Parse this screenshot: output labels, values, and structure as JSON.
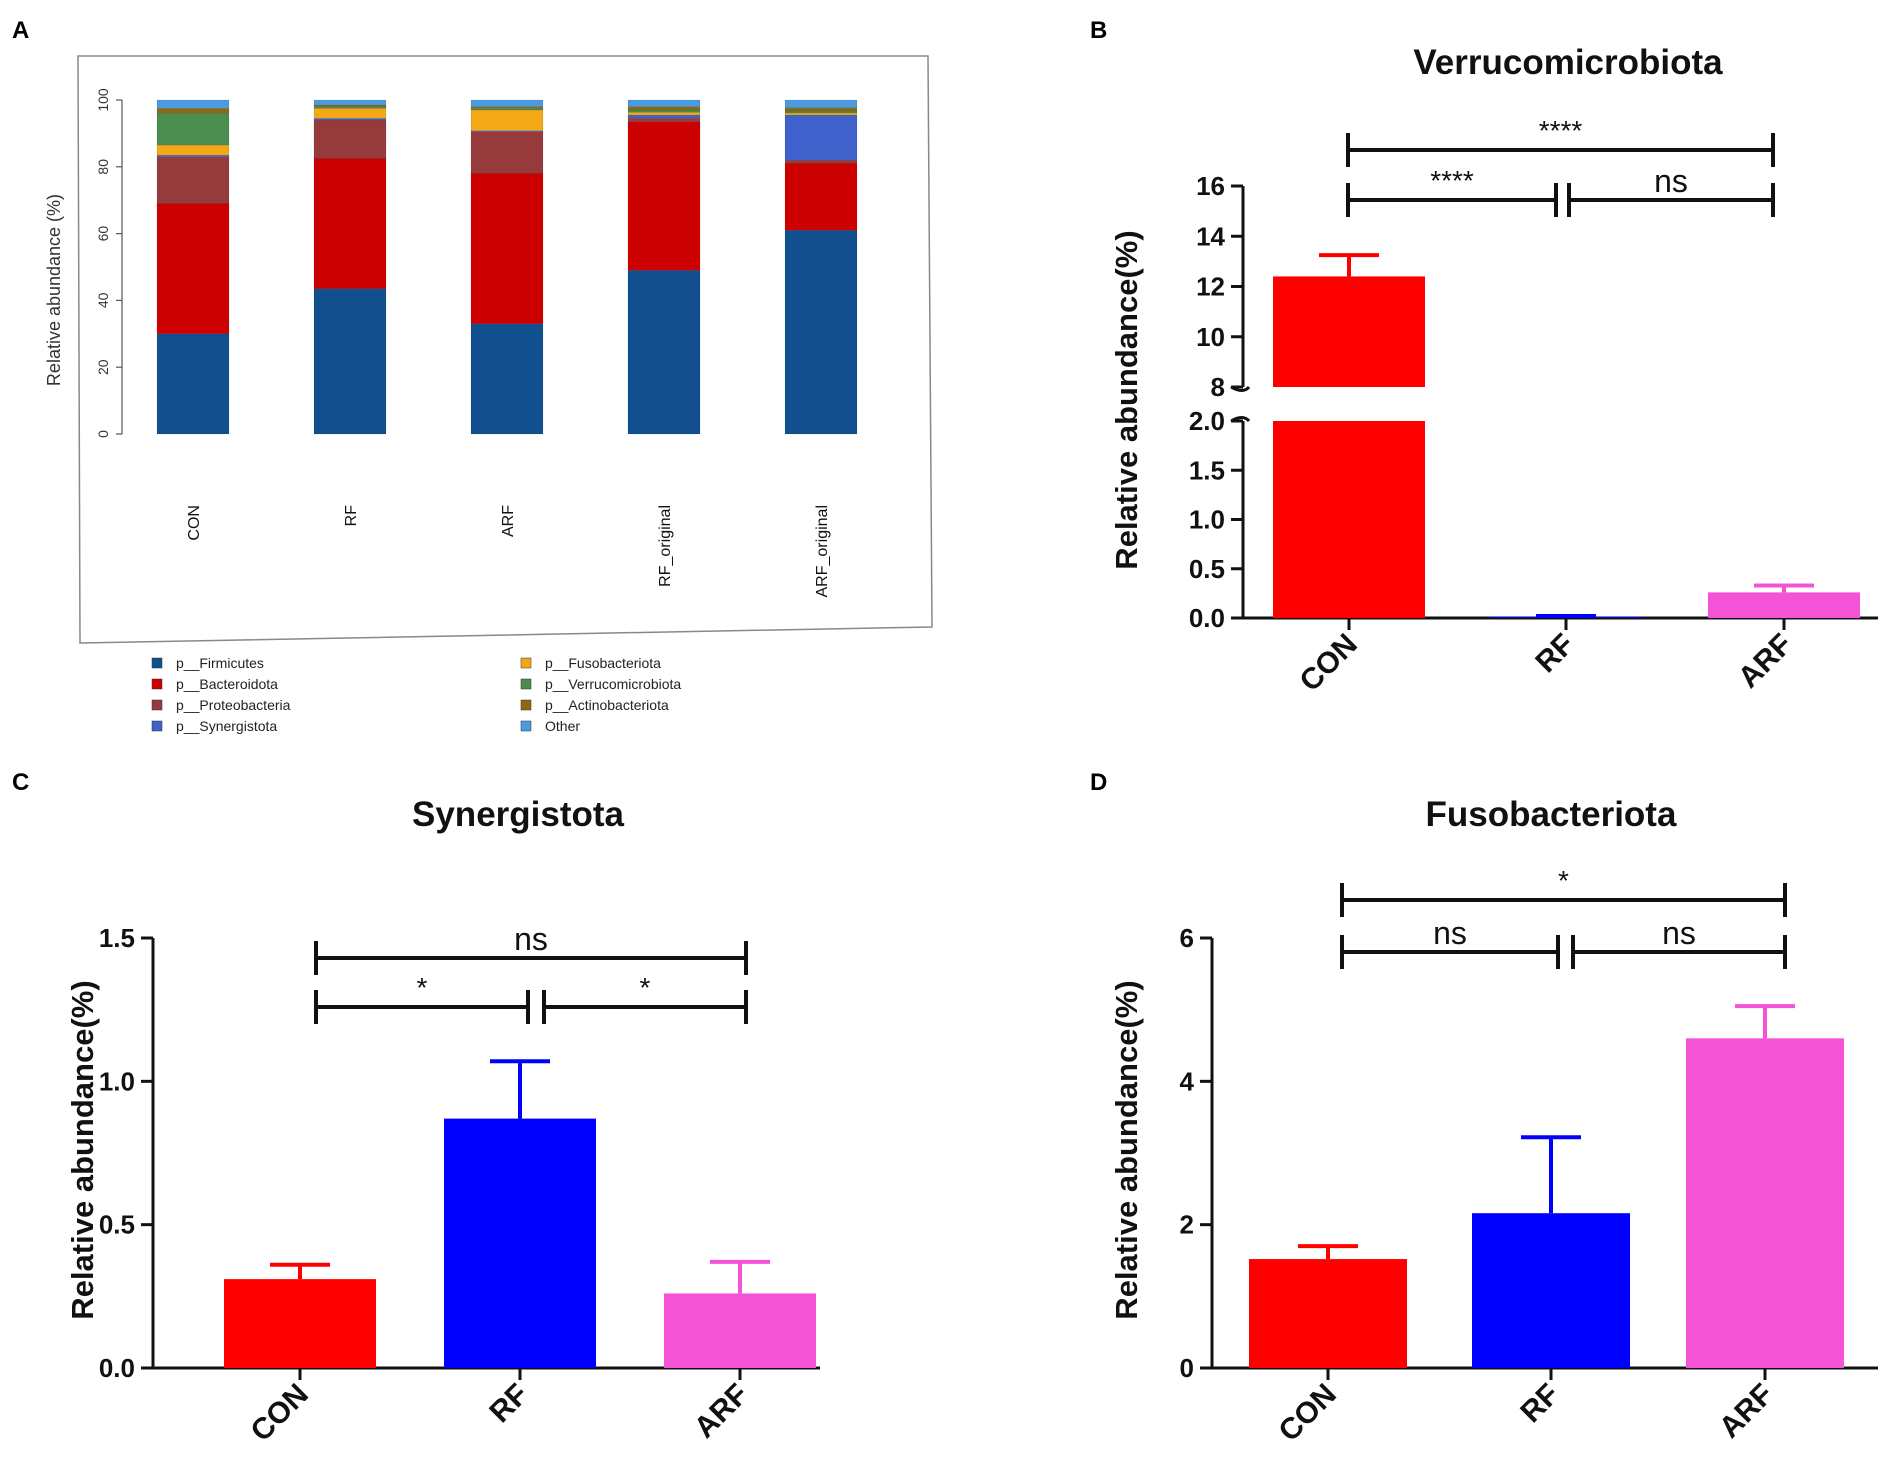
{
  "panels": {
    "a": "A",
    "b": "B",
    "c": "C",
    "d": "D"
  },
  "chart_data": [
    {
      "id": "A",
      "type": "bar",
      "stacked": true,
      "title": "",
      "xlabel": "",
      "ylabel": "Relative abundance (%)",
      "ylim": [
        0,
        100
      ],
      "yticks": [
        0,
        20,
        40,
        60,
        80,
        100
      ],
      "categories": [
        "CON",
        "RF",
        "ARF",
        "RF_original",
        "ARF_original"
      ],
      "series": [
        {
          "name": "p__Firmicutes",
          "color": "#114f8e",
          "values": [
            30,
            43.5,
            33,
            49,
            61
          ]
        },
        {
          "name": "p__Bacteroidota",
          "color": "#cc0000",
          "values": [
            39,
            39,
            45,
            44.5,
            20
          ]
        },
        {
          "name": "p__Proteobacteria",
          "color": "#973a3b",
          "values": [
            14,
            11.5,
            12.5,
            1,
            1
          ]
        },
        {
          "name": "p__Synergistota",
          "color": "#3f62cc",
          "values": [
            0.5,
            0.5,
            0.3,
            1,
            13.5
          ]
        },
        {
          "name": "p__Fusobacteriota",
          "color": "#f5a816",
          "values": [
            3,
            3,
            6.2,
            0.8,
            0.6
          ]
        },
        {
          "name": "p__Verrucomicrobiota",
          "color": "#4b8c50",
          "values": [
            9.5,
            0.5,
            0.5,
            0.7,
            0.6
          ]
        },
        {
          "name": "p__Actinobacteriota",
          "color": "#8c6914",
          "values": [
            1.5,
            0.5,
            0.5,
            1,
            1
          ]
        },
        {
          "name": "Other",
          "color": "#4b9be1",
          "values": [
            2.5,
            1.5,
            2,
            2,
            2.3
          ]
        }
      ]
    },
    {
      "id": "B",
      "type": "bar",
      "title": "Verrucomicrobiota",
      "xlabel": "",
      "ylabel": "Relative abundance(%)",
      "axis_break": {
        "lower": [
          0,
          2.0
        ],
        "upper": [
          8,
          16
        ]
      },
      "yticks_lower": [
        "0.0",
        "0.5",
        "1.0",
        "1.5",
        "2.0"
      ],
      "yticks_upper": [
        "8",
        "10",
        "12",
        "14",
        "16"
      ],
      "categories": [
        "CON",
        "RF",
        "ARF"
      ],
      "colors": [
        "#ff0000",
        "#0000ff",
        "#f553d5"
      ],
      "values": [
        12.4,
        0.01,
        0.26
      ],
      "errors": [
        0.85,
        0.01,
        0.07
      ],
      "significance": [
        {
          "label": "****",
          "from": 0,
          "to": 2
        },
        {
          "label": "****",
          "from": 0,
          "to": 1
        },
        {
          "label": "ns",
          "from": 1,
          "to": 2
        }
      ]
    },
    {
      "id": "C",
      "type": "bar",
      "title": "Synergistota",
      "xlabel": "",
      "ylabel": "Relative abundance(%)",
      "ylim": [
        0,
        1.5
      ],
      "yticks": [
        "0.0",
        "0.5",
        "1.0",
        "1.5"
      ],
      "categories": [
        "CON",
        "RF",
        "ARF"
      ],
      "colors": [
        "#ff0000",
        "#0000ff",
        "#f553d5"
      ],
      "values": [
        0.31,
        0.87,
        0.26
      ],
      "errors": [
        0.05,
        0.2,
        0.11
      ],
      "significance": [
        {
          "label": "ns",
          "from": 0,
          "to": 2
        },
        {
          "label": "*",
          "from": 0,
          "to": 1
        },
        {
          "label": "*",
          "from": 1,
          "to": 2
        }
      ]
    },
    {
      "id": "D",
      "type": "bar",
      "title": "Fusobacteriota",
      "xlabel": "",
      "ylabel": "Relative abundance(%)",
      "ylim": [
        0,
        6
      ],
      "yticks": [
        "0",
        "2",
        "4",
        "6"
      ],
      "categories": [
        "CON",
        "RF",
        "ARF"
      ],
      "colors": [
        "#ff0000",
        "#0000ff",
        "#f553d5"
      ],
      "values": [
        1.52,
        2.16,
        4.6
      ],
      "errors": [
        0.18,
        1.06,
        0.45
      ],
      "significance": [
        {
          "label": "*",
          "from": 0,
          "to": 2
        },
        {
          "label": "ns",
          "from": 0,
          "to": 1
        },
        {
          "label": "ns",
          "from": 1,
          "to": 2
        }
      ]
    }
  ]
}
